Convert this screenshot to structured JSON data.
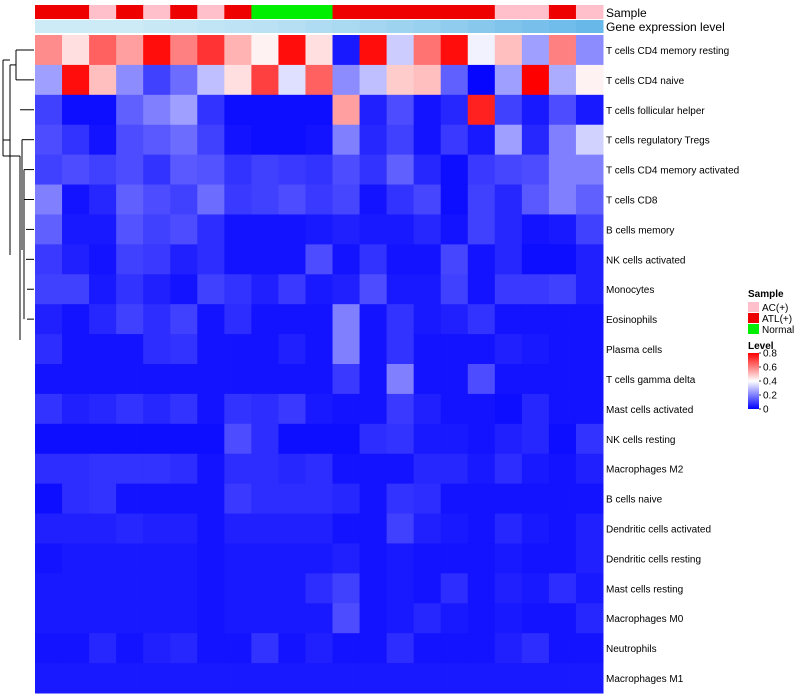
{
  "chart_data": {
    "type": "heatmap",
    "title": "",
    "annotation_tracks": [
      "Sample",
      "Gene expression level"
    ],
    "sample_groups": [
      "ATL(+)",
      "ATL(+)",
      "AC(+)",
      "ATL(+)",
      "AC(+)",
      "ATL(+)",
      "AC(+)",
      "ATL(+)",
      "Normal",
      "Normal",
      "Normal",
      "ATL(+)",
      "ATL(+)",
      "ATL(+)",
      "ATL(+)",
      "ATL(+)",
      "ATL(+)",
      "AC(+)",
      "AC(+)",
      "ATL(+)",
      "AC(+)"
    ],
    "sample_colors": {
      "AC(+)": "#ffc0cb",
      "ATL(+)": "#ee0000",
      "Normal": "#00ee00"
    },
    "expression_track_colors": [
      "#cdeaf7",
      "#cdeaf7",
      "#cdeaf7",
      "#cdeaf7",
      "#c9e8f6",
      "#c6e7f6",
      "#c2e5f5",
      "#bee3f5",
      "#bae1f4",
      "#b6dff4",
      "#b0dcf3",
      "#aad9f2",
      "#a4d6f1",
      "#9ed3f0",
      "#98d0ef",
      "#90ccee",
      "#88c8ed",
      "#80c4ec",
      "#78c0eb",
      "#70bcea",
      "#68b8e9"
    ],
    "rows": [
      "T cells CD4 memory resting",
      "T cells CD4 naive",
      "T cells follicular helper",
      "T cells regulatory  Tregs",
      "T cells CD4 memory activated",
      "T cells CD8",
      "B cells memory",
      "NK cells activated",
      "Monocytes",
      "Eosinophils",
      "Plasma cells",
      "T cells gamma delta",
      "Mast cells activated",
      "NK cells resting",
      "Macrophages M2",
      "B cells naive",
      "Dendritic cells activated",
      "Dendritic cells resting",
      "Mast cells resting",
      "Macrophages M0",
      "Neutrophils",
      "Macrophages M1"
    ],
    "values": [
      [
        0.58,
        0.45,
        0.65,
        0.55,
        0.78,
        0.6,
        0.72,
        0.52,
        0.42,
        0.78,
        0.45,
        0.04,
        0.78,
        0.32,
        0.62,
        0.78,
        0.38,
        0.5,
        0.25,
        0.6,
        0.22
      ],
      [
        0.25,
        0.78,
        0.5,
        0.22,
        0.1,
        0.17,
        0.3,
        0.45,
        0.7,
        0.35,
        0.65,
        0.22,
        0.3,
        0.48,
        0.5,
        0.15,
        0.01,
        0.25,
        0.8,
        0.27,
        0.42
      ],
      [
        0.1,
        0.02,
        0.02,
        0.15,
        0.2,
        0.25,
        0.08,
        0.02,
        0.02,
        0.02,
        0.02,
        0.55,
        0.05,
        0.12,
        0.03,
        0.06,
        0.75,
        0.1,
        0.04,
        0.12,
        0.04
      ],
      [
        0.12,
        0.08,
        0.03,
        0.12,
        0.14,
        0.17,
        0.1,
        0.03,
        0.02,
        0.02,
        0.03,
        0.2,
        0.06,
        0.1,
        0.03,
        0.09,
        0.04,
        0.25,
        0.06,
        0.2,
        0.33
      ],
      [
        0.1,
        0.12,
        0.1,
        0.12,
        0.08,
        0.14,
        0.13,
        0.08,
        0.1,
        0.09,
        0.08,
        0.12,
        0.08,
        0.15,
        0.06,
        0.02,
        0.09,
        0.11,
        0.12,
        0.2,
        0.2
      ],
      [
        0.2,
        0.03,
        0.06,
        0.15,
        0.12,
        0.1,
        0.17,
        0.09,
        0.1,
        0.12,
        0.09,
        0.11,
        0.03,
        0.08,
        0.11,
        0.02,
        0.1,
        0.06,
        0.14,
        0.2,
        0.15
      ],
      [
        0.15,
        0.04,
        0.04,
        0.13,
        0.1,
        0.12,
        0.07,
        0.03,
        0.03,
        0.03,
        0.04,
        0.05,
        0.04,
        0.04,
        0.06,
        0.03,
        0.1,
        0.06,
        0.03,
        0.04,
        0.1
      ],
      [
        0.09,
        0.05,
        0.03,
        0.1,
        0.09,
        0.05,
        0.07,
        0.03,
        0.03,
        0.03,
        0.12,
        0.03,
        0.08,
        0.03,
        0.03,
        0.11,
        0.03,
        0.06,
        0.02,
        0.02,
        0.05
      ],
      [
        0.1,
        0.1,
        0.04,
        0.08,
        0.05,
        0.03,
        0.1,
        0.08,
        0.05,
        0.09,
        0.04,
        0.05,
        0.12,
        0.04,
        0.04,
        0.1,
        0.03,
        0.09,
        0.09,
        0.1,
        0.05
      ],
      [
        0.05,
        0.03,
        0.06,
        0.1,
        0.07,
        0.1,
        0.03,
        0.07,
        0.03,
        0.03,
        0.03,
        0.2,
        0.03,
        0.08,
        0.04,
        0.05,
        0.08,
        0.03,
        0.03,
        0.03,
        0.03
      ],
      [
        0.07,
        0.03,
        0.03,
        0.03,
        0.07,
        0.08,
        0.03,
        0.03,
        0.03,
        0.05,
        0.03,
        0.2,
        0.03,
        0.08,
        0.03,
        0.03,
        0.03,
        0.05,
        0.04,
        0.03,
        0.03
      ],
      [
        0.03,
        0.03,
        0.03,
        0.03,
        0.03,
        0.03,
        0.03,
        0.03,
        0.03,
        0.03,
        0.03,
        0.09,
        0.03,
        0.2,
        0.03,
        0.03,
        0.12,
        0.03,
        0.03,
        0.03,
        0.03
      ],
      [
        0.08,
        0.05,
        0.06,
        0.08,
        0.06,
        0.08,
        0.03,
        0.08,
        0.07,
        0.09,
        0.04,
        0.03,
        0.03,
        0.09,
        0.05,
        0.03,
        0.03,
        0.02,
        0.06,
        0.03,
        0.03
      ],
      [
        0.02,
        0.02,
        0.02,
        0.02,
        0.02,
        0.02,
        0.02,
        0.12,
        0.07,
        0.02,
        0.02,
        0.02,
        0.07,
        0.08,
        0.04,
        0.04,
        0.03,
        0.05,
        0.06,
        0.02,
        0.08
      ],
      [
        0.07,
        0.07,
        0.08,
        0.08,
        0.08,
        0.07,
        0.03,
        0.07,
        0.07,
        0.06,
        0.07,
        0.03,
        0.03,
        0.03,
        0.06,
        0.06,
        0.04,
        0.07,
        0.04,
        0.03,
        0.05
      ],
      [
        0.02,
        0.07,
        0.08,
        0.03,
        0.03,
        0.03,
        0.03,
        0.09,
        0.07,
        0.07,
        0.07,
        0.06,
        0.03,
        0.08,
        0.07,
        0.03,
        0.03,
        0.03,
        0.03,
        0.03,
        0.03
      ],
      [
        0.05,
        0.05,
        0.05,
        0.06,
        0.05,
        0.05,
        0.03,
        0.05,
        0.05,
        0.05,
        0.05,
        0.03,
        0.03,
        0.1,
        0.05,
        0.04,
        0.03,
        0.06,
        0.04,
        0.03,
        0.05
      ],
      [
        0.03,
        0.04,
        0.04,
        0.04,
        0.04,
        0.04,
        0.03,
        0.04,
        0.04,
        0.04,
        0.04,
        0.05,
        0.03,
        0.04,
        0.03,
        0.03,
        0.03,
        0.04,
        0.03,
        0.03,
        0.05
      ],
      [
        0.04,
        0.04,
        0.04,
        0.04,
        0.04,
        0.04,
        0.03,
        0.04,
        0.04,
        0.04,
        0.07,
        0.1,
        0.03,
        0.04,
        0.03,
        0.07,
        0.03,
        0.05,
        0.04,
        0.07,
        0.04
      ],
      [
        0.04,
        0.04,
        0.04,
        0.04,
        0.04,
        0.04,
        0.03,
        0.04,
        0.04,
        0.04,
        0.04,
        0.12,
        0.03,
        0.04,
        0.06,
        0.04,
        0.03,
        0.04,
        0.03,
        0.03,
        0.06
      ],
      [
        0.03,
        0.03,
        0.06,
        0.03,
        0.05,
        0.06,
        0.03,
        0.03,
        0.08,
        0.03,
        0.05,
        0.03,
        0.03,
        0.07,
        0.03,
        0.03,
        0.03,
        0.05,
        0.07,
        0.03,
        0.03
      ],
      [
        0.04,
        0.04,
        0.04,
        0.04,
        0.04,
        0.04,
        0.04,
        0.04,
        0.04,
        0.04,
        0.04,
        0.04,
        0.04,
        0.04,
        0.04,
        0.04,
        0.04,
        0.04,
        0.04,
        0.04,
        0.04
      ]
    ],
    "legend_sample": {
      "title": "Sample",
      "items": [
        "AC(+)",
        "ATL(+)",
        "Normal"
      ]
    },
    "legend_level": {
      "title": "Level",
      "ticks": [
        0.8,
        0.6,
        0.4,
        0.2,
        0
      ],
      "range": [
        0,
        0.8
      ],
      "colormap": [
        "#0000ff",
        "#ffffff",
        "#ff0000"
      ]
    }
  }
}
